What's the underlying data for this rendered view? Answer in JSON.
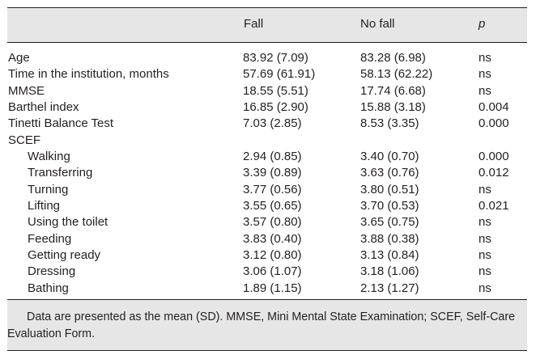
{
  "header": {
    "col_fall": "Fall",
    "col_nofall": "No fall",
    "col_p": "p"
  },
  "rows": [
    {
      "label": "Age",
      "fall": "83.92 (7.09)",
      "nofall": "83.28 (6.98)",
      "p": "ns",
      "indent": false
    },
    {
      "label": "Time in the institution, months",
      "fall": "57.69 (61.91)",
      "nofall": "58.13 (62.22)",
      "p": "ns",
      "indent": false
    },
    {
      "label": "MMSE",
      "fall": "18.55 (5.51)",
      "nofall": "17.74 (6.68)",
      "p": "ns",
      "indent": false
    },
    {
      "label": "Barthel index",
      "fall": "16.85 (2.90)",
      "nofall": "15.88 (3.18)",
      "p": "0.004",
      "indent": false
    },
    {
      "label": "Tinetti Balance Test",
      "fall": "7.03 (2.85)",
      "nofall": "8.53 (3.35)",
      "p": "0.000",
      "indent": false
    },
    {
      "label": "SCEF",
      "fall": "",
      "nofall": "",
      "p": "",
      "indent": false
    },
    {
      "label": "Walking",
      "fall": "2.94 (0.85)",
      "nofall": "3.40 (0.70)",
      "p": "0.000",
      "indent": true
    },
    {
      "label": "Transferring",
      "fall": "3.39 (0.89)",
      "nofall": "3.63 (0.76)",
      "p": "0.012",
      "indent": true
    },
    {
      "label": "Turning",
      "fall": "3.77 (0.56)",
      "nofall": "3.80 (0.51)",
      "p": "ns",
      "indent": true
    },
    {
      "label": "Lifting",
      "fall": "3.55 (0.65)",
      "nofall": "3.70 (0.53)",
      "p": "0.021",
      "indent": true
    },
    {
      "label": "Using the toilet",
      "fall": "3.57 (0.80)",
      "nofall": "3.65 (0.75)",
      "p": "ns",
      "indent": true
    },
    {
      "label": "Feeding",
      "fall": "3.83 (0.40)",
      "nofall": "3.88 (0.38)",
      "p": "ns",
      "indent": true
    },
    {
      "label": "Getting ready",
      "fall": "3.12 (0.80)",
      "nofall": "3.13 (0.84)",
      "p": "ns",
      "indent": true
    },
    {
      "label": "Dressing",
      "fall": "3.06 (1.07)",
      "nofall": "3.18 (1.06)",
      "p": "ns",
      "indent": true
    },
    {
      "label": "Bathing",
      "fall": "1.89 (1.15)",
      "nofall": "2.13 (1.27)",
      "p": "ns",
      "indent": true
    }
  ],
  "footnote": "Data are presented as the mean (SD). MMSE, Mini Mental State Examination; SCEF, Self-Care Evaluation Form."
}
